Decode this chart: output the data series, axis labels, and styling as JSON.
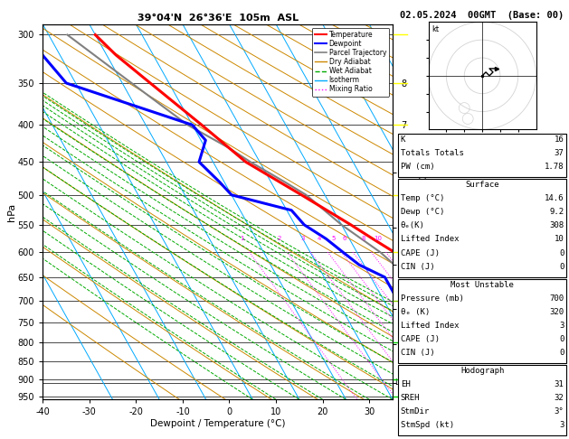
{
  "title_left": "39°04'N  26°36'E  105m  ASL",
  "title_right": "02.05.2024  00GMT  (Base: 00)",
  "xlabel": "Dewpoint / Temperature (°C)",
  "ylabel_left": "hPa",
  "pressure_ticks": [
    300,
    350,
    400,
    450,
    500,
    550,
    600,
    650,
    700,
    750,
    800,
    850,
    900,
    950
  ],
  "temp_ticks": [
    -40,
    -30,
    -20,
    -10,
    0,
    10,
    20,
    30
  ],
  "T_min": -40,
  "T_max": 35,
  "P_min": 290,
  "P_max": 960,
  "skew_deg": 45,
  "km_labels": [
    1,
    2,
    3,
    4,
    5,
    6,
    7,
    8
  ],
  "km_pressures": [
    910,
    805,
    720,
    625,
    555,
    465,
    400,
    350
  ],
  "lcl_pressure": 910,
  "temp_pressure": [
    300,
    320,
    350,
    400,
    450,
    500,
    550,
    575,
    600,
    650,
    700,
    750,
    800,
    850,
    900,
    925,
    950
  ],
  "temp_T": [
    -30,
    -28,
    -24,
    -18,
    -13,
    -5,
    2,
    5,
    8,
    12,
    14,
    17,
    18,
    18,
    17,
    16,
    15
  ],
  "dewp_pressure": [
    300,
    350,
    400,
    420,
    450,
    480,
    500,
    525,
    550,
    575,
    600,
    625,
    650,
    700,
    750,
    800,
    850,
    900,
    925,
    950
  ],
  "dewp_T": [
    -45,
    -42,
    -20,
    -19,
    -23,
    -21,
    -20,
    -9,
    -8,
    -5,
    -3,
    -1,
    3,
    3,
    7,
    5,
    7,
    9,
    9,
    8
  ],
  "parcel_pressure": [
    300,
    350,
    400,
    430,
    450,
    480,
    500,
    550,
    600,
    650,
    700,
    750,
    800,
    850,
    900,
    925,
    950
  ],
  "parcel_T": [
    -36,
    -28,
    -21,
    -15,
    -12,
    -7,
    -4,
    0,
    5,
    8,
    10,
    11,
    11,
    10,
    10,
    9,
    9
  ],
  "temp_color": "#ff0000",
  "dewp_color": "#0000ff",
  "parcel_color": "#808080",
  "isotherm_color": "#00aaff",
  "dry_adiabat_color": "#cc8800",
  "wet_adiabat_color": "#00aa00",
  "mixing_ratio_color": "#ff00ff",
  "mixing_ratio_vals": [
    1,
    2,
    3,
    4,
    5,
    6,
    8,
    10,
    15,
    20,
    25
  ],
  "stats_K": 16,
  "stats_TT": 37,
  "stats_PW": "1.78",
  "stats_sfc_temp": "14.6",
  "stats_sfc_dewp": "9.2",
  "stats_sfc_theta_e": "308",
  "stats_sfc_li": "10",
  "stats_sfc_cape": "0",
  "stats_sfc_cin": "0",
  "stats_mu_pres": "700",
  "stats_mu_theta_e": "320",
  "stats_mu_li": "3",
  "stats_mu_cape": "0",
  "stats_mu_cin": "0",
  "stats_eh": "31",
  "stats_sreh": "32",
  "stats_stmdir": "3°",
  "stats_stmspd": "3"
}
